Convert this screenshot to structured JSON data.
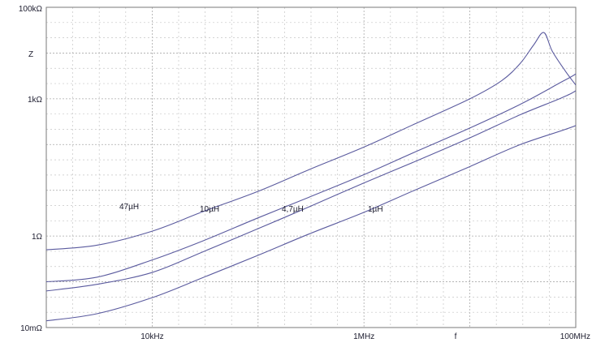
{
  "chart_data": {
    "type": "line",
    "x_scale": "log",
    "y_scale": "log",
    "xlim": [
      "1kHz",
      "100MHz"
    ],
    "ylim": [
      "10mΩ",
      "100kΩ"
    ],
    "xlabel": "f",
    "ylabel": "Z",
    "grid": true,
    "x_tick_labels": [
      {
        "label": "10kHz",
        "value_hz": 10000
      },
      {
        "label": "1MHz",
        "value_hz": 1000000
      },
      {
        "label": "100MHz",
        "value_hz": 100000000
      }
    ],
    "y_tick_labels": [
      {
        "label": "100kΩ",
        "value_ohm": 100000
      },
      {
        "label": "1kΩ",
        "value_ohm": 1000
      },
      {
        "label": "1Ω",
        "value_ohm": 1
      },
      {
        "label": "10mΩ",
        "value_ohm": 0.01
      }
    ],
    "curve_color": "#5a5a9e",
    "series": [
      {
        "name": "47µH",
        "points": [
          [
            1000,
            0.5
          ],
          [
            3000,
            0.63
          ],
          [
            10000,
            1.28
          ],
          [
            30000,
            3.4
          ],
          [
            100000,
            9.5
          ],
          [
            300000,
            28
          ],
          [
            1000000,
            88
          ],
          [
            3000000,
            280
          ],
          [
            10000000,
            1000
          ],
          [
            20000000,
            2500
          ],
          [
            30000000,
            6000
          ],
          [
            40000000,
            15000
          ],
          [
            50000000,
            28000
          ],
          [
            60000000,
            11000
          ],
          [
            80000000,
            4000
          ],
          [
            100000000,
            2000
          ]
        ]
      },
      {
        "name": "10µH",
        "points": [
          [
            1000,
            0.1
          ],
          [
            3000,
            0.126
          ],
          [
            10000,
            0.3
          ],
          [
            30000,
            0.78
          ],
          [
            100000,
            2.5
          ],
          [
            300000,
            7
          ],
          [
            1000000,
            22
          ],
          [
            3000000,
            68
          ],
          [
            10000000,
            230
          ],
          [
            30000000,
            760
          ],
          [
            70000000,
            2200
          ],
          [
            100000000,
            3500
          ],
          [
            150000000,
            7000
          ],
          [
            180000000,
            3000
          ],
          [
            200000000,
            1500
          ]
        ]
      },
      {
        "name": "4,7µH",
        "points": [
          [
            1000,
            0.063
          ],
          [
            3000,
            0.088
          ],
          [
            10000,
            0.16
          ],
          [
            30000,
            0.45
          ],
          [
            100000,
            1.45
          ],
          [
            300000,
            4.3
          ],
          [
            1000000,
            14.5
          ],
          [
            3000000,
            42
          ],
          [
            10000000,
            140
          ],
          [
            30000000,
            450
          ],
          [
            70000000,
            1000
          ],
          [
            100000000,
            1500
          ],
          [
            150000000,
            3000
          ],
          [
            180000000,
            5000
          ],
          [
            200000000,
            1800
          ]
        ]
      },
      {
        "name": "1µH",
        "points": [
          [
            1000,
            0.014
          ],
          [
            3000,
            0.02
          ],
          [
            10000,
            0.045
          ],
          [
            30000,
            0.123
          ],
          [
            100000,
            0.38
          ],
          [
            300000,
            1.1
          ],
          [
            1000000,
            3.3
          ],
          [
            3000000,
            10
          ],
          [
            10000000,
            33
          ],
          [
            30000000,
            100
          ],
          [
            100000000,
            260
          ],
          [
            200000000,
            580
          ]
        ]
      }
    ]
  }
}
